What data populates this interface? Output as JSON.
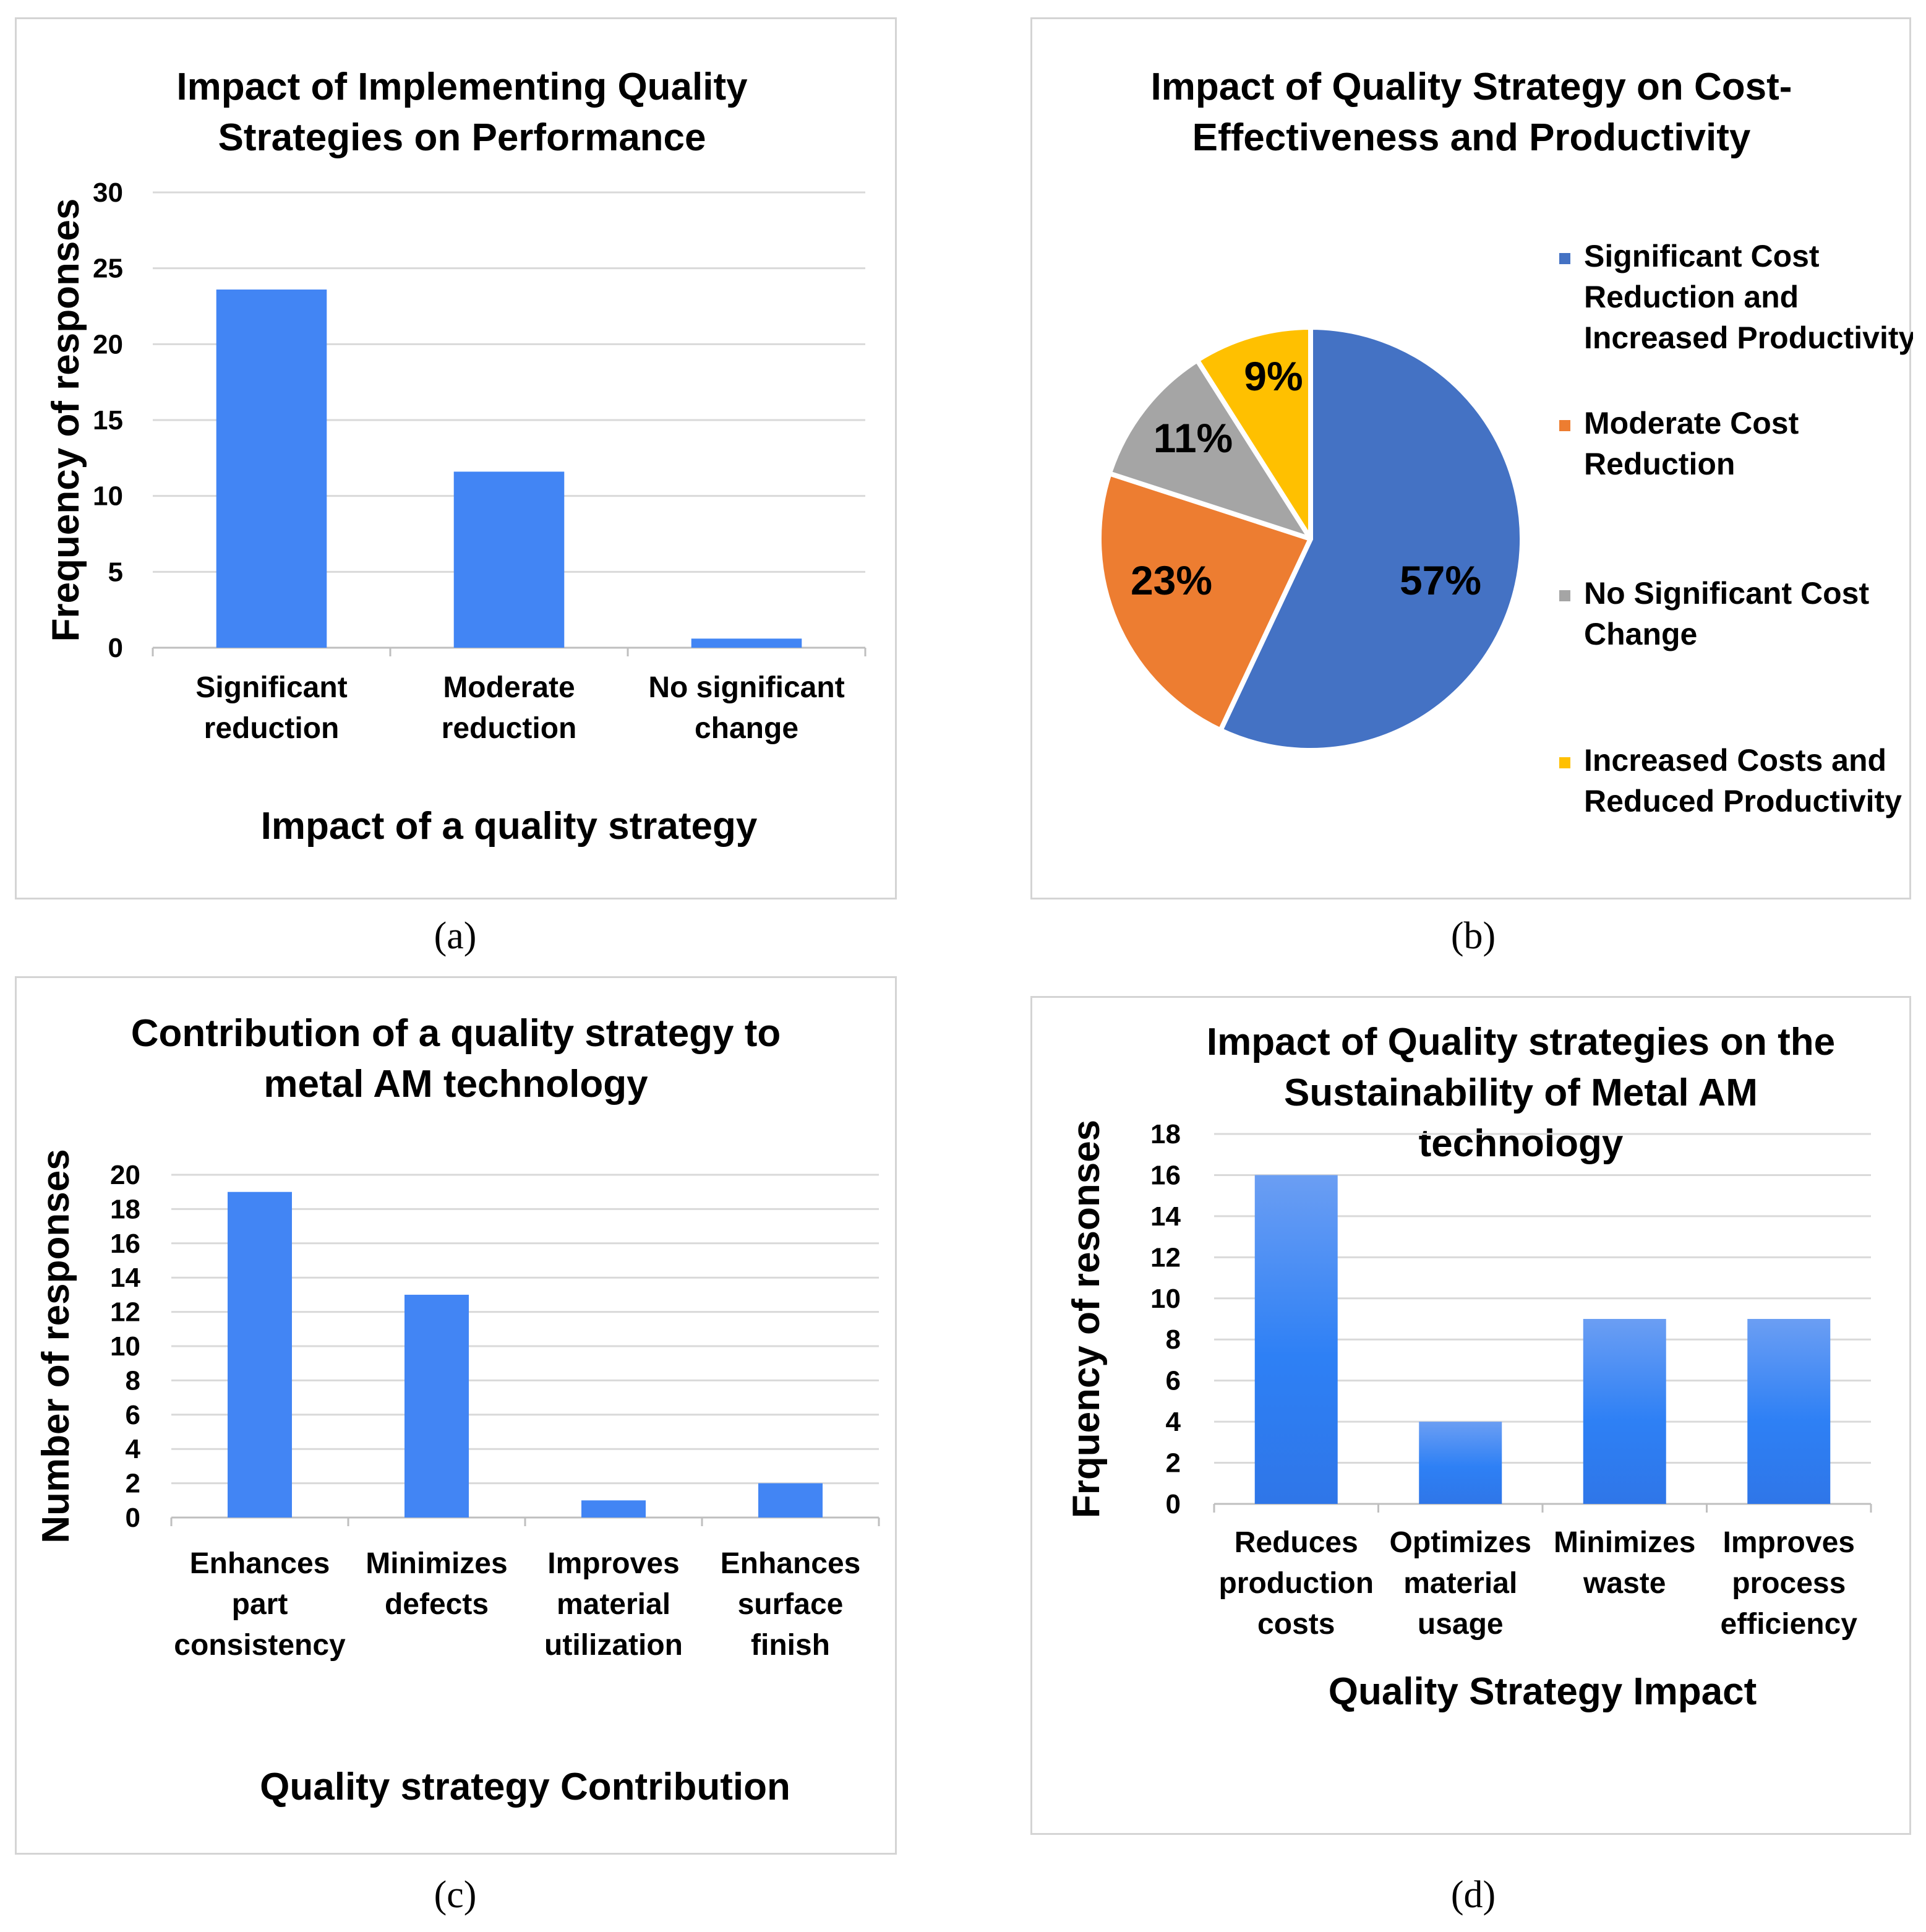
{
  "colors": {
    "bar": "#4285f4",
    "bar_d_top": "#6b9ef3",
    "bar_d_bottom": "#2f76e8",
    "pie": [
      "#4472c4",
      "#ed7d31",
      "#a5a5a5",
      "#ffc000"
    ]
  },
  "captions": {
    "a": "(a)",
    "b": "(b)",
    "c": "(c)",
    "d": "(d)"
  },
  "chart_data": [
    {
      "id": "a",
      "type": "bar",
      "title": [
        "Impact of Implementing Quality",
        "Strategies on Performance"
      ],
      "xlabel": "Impact of a quality strategy",
      "ylabel": "Frequency of responses",
      "ylim": [
        0,
        30
      ],
      "yticks": [
        0,
        5,
        10,
        15,
        20,
        25,
        30
      ],
      "categories": [
        [
          "Significant",
          "reduction"
        ],
        [
          "Moderate",
          "reduction"
        ],
        [
          "No significant",
          "change"
        ]
      ],
      "values": [
        23.6,
        11.6,
        0.6
      ]
    },
    {
      "id": "b",
      "type": "pie",
      "title": [
        "Impact of Quality Strategy on Cost-",
        "Effectiveness and Productivity"
      ],
      "slices": [
        {
          "label": [
            "Significant Cost",
            "Reduction and",
            "Increased Productivity"
          ],
          "value": 57,
          "text": "57%"
        },
        {
          "label": [
            "Moderate Cost",
            "Reduction"
          ],
          "value": 23,
          "text": "23%"
        },
        {
          "label": [
            "No Significant Cost",
            "Change"
          ],
          "value": 11,
          "text": "11%"
        },
        {
          "label": [
            "Increased Costs and",
            "Reduced Productivity"
          ],
          "value": 9,
          "text": "9%"
        }
      ],
      "legend": "right"
    },
    {
      "id": "c",
      "type": "bar",
      "title": [
        "Contribution of a quality strategy to",
        "metal AM technology"
      ],
      "xlabel": "Quality strategy Contribution",
      "ylabel": "Number of responses",
      "ylim": [
        0,
        20
      ],
      "yticks": [
        0,
        2,
        4,
        6,
        8,
        10,
        12,
        14,
        16,
        18,
        20
      ],
      "categories": [
        [
          "Enhances",
          "part",
          "consistency"
        ],
        [
          "Minimizes",
          "defects"
        ],
        [
          "Improves",
          "material",
          "utilization"
        ],
        [
          "Enhances",
          "surface",
          "finish"
        ]
      ],
      "values": [
        19,
        13,
        1,
        2
      ]
    },
    {
      "id": "d",
      "type": "bar",
      "title": [
        "Impact of Quality strategies on the",
        "Sustainability of  Metal AM",
        "technology"
      ],
      "xlabel": "Quality Strategy Impact",
      "ylabel": "Frquency of resonses",
      "ylim": [
        0,
        18
      ],
      "yticks": [
        0,
        2,
        4,
        6,
        8,
        10,
        12,
        14,
        16,
        18
      ],
      "categories": [
        [
          "Reduces",
          "production",
          "costs"
        ],
        [
          "Optimizes",
          "material",
          "usage"
        ],
        [
          "Minimizes",
          "waste"
        ],
        [
          "Improves",
          "process",
          "efficiency"
        ]
      ],
      "values": [
        16,
        4,
        9,
        9
      ]
    }
  ]
}
